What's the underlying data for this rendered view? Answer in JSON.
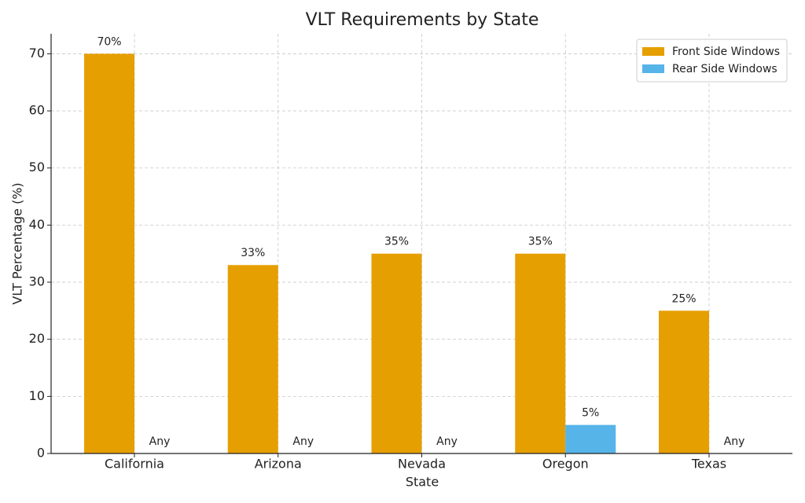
{
  "chart_data": {
    "type": "bar",
    "title": "VLT Requirements by State",
    "xlabel": "State",
    "ylabel": "VLT Percentage (%)",
    "categories": [
      "California",
      "Arizona",
      "Nevada",
      "Oregon",
      "Texas"
    ],
    "series": [
      {
        "name": "Front Side Windows",
        "color": "#e69f00",
        "values": [
          70,
          33,
          35,
          35,
          25
        ],
        "value_labels": [
          "70%",
          "33%",
          "35%",
          "35%",
          "25%"
        ]
      },
      {
        "name": "Rear Side Windows",
        "color": "#56b4e9",
        "values": [
          null,
          null,
          null,
          5,
          null
        ],
        "value_labels": [
          "Any",
          "Any",
          "Any",
          "5%",
          "Any"
        ]
      }
    ],
    "ylim": [
      0,
      73.5
    ],
    "yticks": [
      0,
      10,
      20,
      30,
      40,
      50,
      60,
      70
    ],
    "grid": true,
    "legend": "upper right"
  }
}
